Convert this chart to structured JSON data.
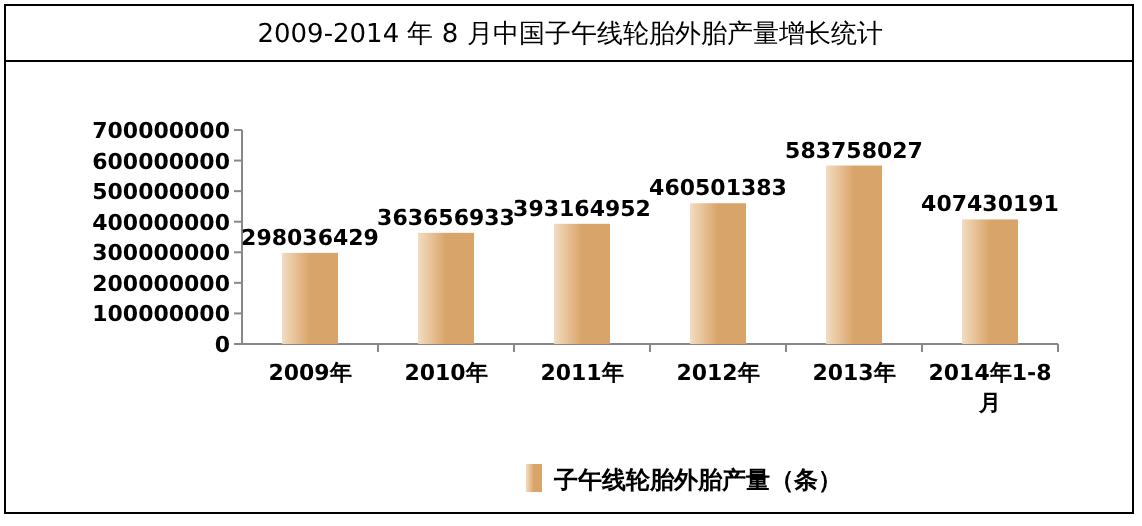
{
  "chart_data": {
    "type": "bar",
    "title": "2009-2014 年 8 月中国子午线轮胎外胎产量增长统计",
    "categories": [
      "2009年",
      "2010年",
      "2011年",
      "2012年",
      "2013年",
      "2014年1-8月"
    ],
    "series": [
      {
        "name": "子午线轮胎外胎产量（条）",
        "color": "#d9a46a",
        "values": [
          298036429,
          363656933,
          393164952,
          460501383,
          583758027,
          407430191
        ]
      }
    ],
    "ylim": [
      0,
      700000000
    ],
    "yticks": [
      0,
      100000000,
      200000000,
      300000000,
      400000000,
      500000000,
      600000000,
      700000000
    ],
    "data_labels": true,
    "grid": false,
    "legend": "bottom"
  }
}
